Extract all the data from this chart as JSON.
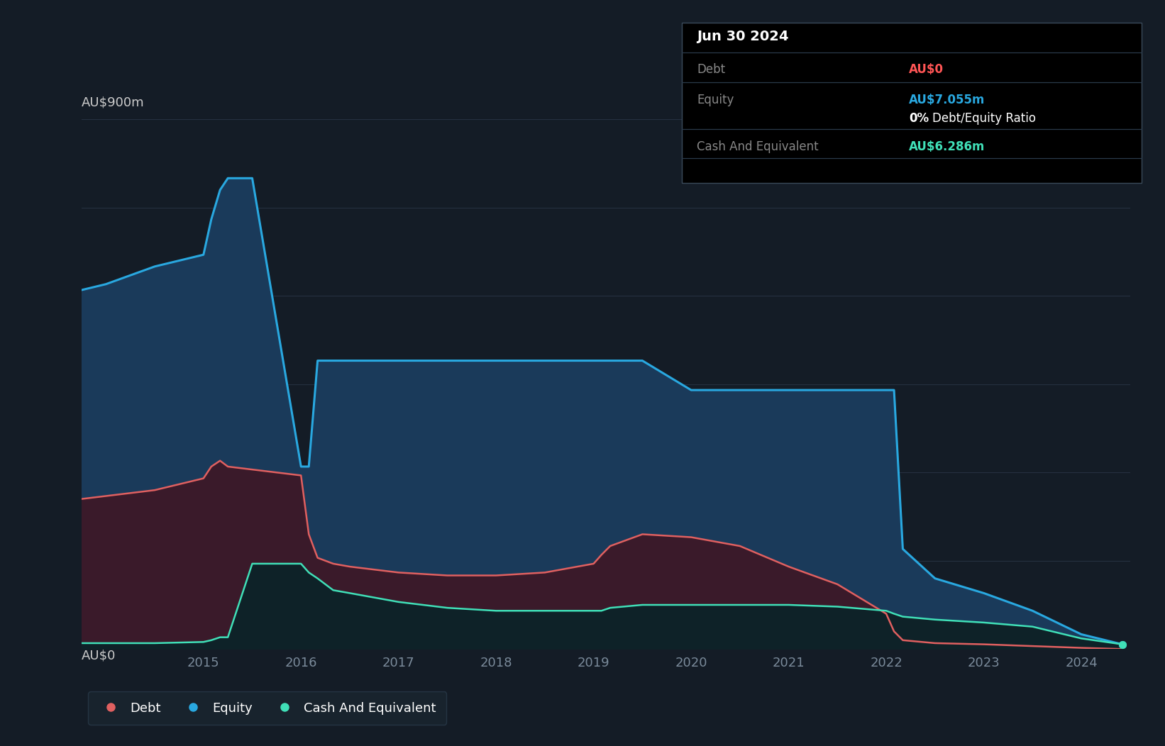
{
  "background_color": "#141c26",
  "plot_bg_color": "#141c26",
  "grid_color": "#263040",
  "axis_label_color": "#cccccc",
  "tick_color": "#7a8a9a",
  "equity_color": "#29a8e0",
  "equity_fill": "#1a3a5a",
  "debt_color": "#e06060",
  "debt_fill": "#3a1a2a",
  "cash_color": "#40e0b8",
  "cash_fill": "#0e2228",
  "ylim": [
    0,
    900
  ],
  "ylabel": "AU$900m",
  "y0_label": "AU$0",
  "tooltip_title": "Jun 30 2024",
  "tooltip_debt_label": "Debt",
  "tooltip_debt_value": "AU$0",
  "tooltip_equity_label": "Equity",
  "tooltip_equity_value": "AU$7.055m",
  "tooltip_ratio_value": "0%",
  "tooltip_ratio_label": "Debt/Equity Ratio",
  "tooltip_cash_label": "Cash And Equivalent",
  "tooltip_cash_value": "AU$6.286m",
  "legend_debt": "Debt",
  "legend_equity": "Equity",
  "legend_cash": "Cash And Equivalent",
  "dates": [
    2013.75,
    2014.0,
    2014.5,
    2015.0,
    2015.08,
    2015.17,
    2015.25,
    2015.5,
    2016.0,
    2016.08,
    2016.17,
    2016.33,
    2016.5,
    2017.0,
    2017.5,
    2018.0,
    2018.5,
    2019.0,
    2019.08,
    2019.17,
    2019.5,
    2020.0,
    2020.5,
    2021.0,
    2021.5,
    2022.0,
    2022.08,
    2022.17,
    2022.5,
    2023.0,
    2023.5,
    2024.0,
    2024.42
  ],
  "equity_values": [
    610,
    620,
    650,
    670,
    730,
    780,
    800,
    800,
    310,
    310,
    490,
    490,
    490,
    490,
    490,
    490,
    490,
    490,
    490,
    490,
    490,
    440,
    440,
    440,
    440,
    440,
    440,
    170,
    120,
    95,
    65,
    25,
    8
  ],
  "debt_values": [
    255,
    260,
    270,
    290,
    310,
    320,
    310,
    305,
    295,
    195,
    155,
    145,
    140,
    130,
    125,
    125,
    130,
    145,
    160,
    175,
    195,
    190,
    175,
    140,
    110,
    60,
    30,
    15,
    10,
    8,
    5,
    2,
    0
  ],
  "cash_values": [
    10,
    10,
    10,
    12,
    15,
    20,
    20,
    145,
    145,
    130,
    120,
    100,
    95,
    80,
    70,
    65,
    65,
    65,
    65,
    70,
    75,
    75,
    75,
    75,
    72,
    65,
    60,
    55,
    50,
    45,
    38,
    18,
    8
  ]
}
